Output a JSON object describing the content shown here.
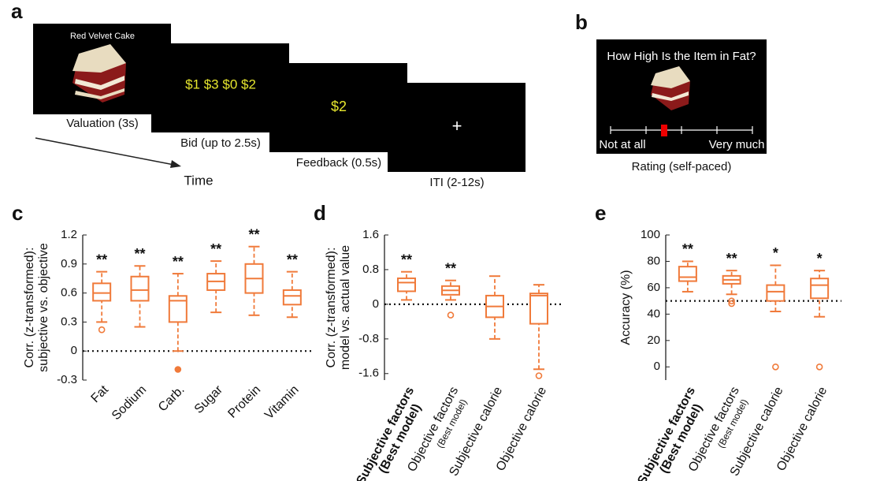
{
  "diagram": {
    "panel_a": "a",
    "panel_b": "b",
    "screens": [
      {
        "text": "Red Velvet Cake",
        "caption": "Valuation (3s)"
      },
      {
        "text": "$1  $3  $0  $2",
        "caption": "Bid (up to 2.5s)"
      },
      {
        "text": "$2",
        "caption": "Feedback (0.5s)"
      },
      {
        "text": "+",
        "caption": "ITI (2-12s)"
      }
    ],
    "time_label": "Time",
    "rating": {
      "question": "How High Is the Item in Fat?",
      "left": "Not at all",
      "right": "Very much",
      "caption": "Rating (self-paced)"
    }
  },
  "chart_data": [
    {
      "type": "box",
      "panel": "c",
      "ylabel": [
        "Corr. (z-transformed):",
        "subjective vs. objective"
      ],
      "categories": [
        "Fat",
        "Sodium",
        "Carb.",
        "Sugar",
        "Protein",
        "Vitamin"
      ],
      "significance": [
        "**",
        "**",
        "**",
        "**",
        "**",
        "**"
      ],
      "color": "#f07a3a",
      "hline": 0,
      "ylim": [
        -0.3,
        1.2
      ],
      "yticks": [
        -0.3,
        0,
        0.3,
        0.6,
        0.9,
        1.2
      ],
      "boxes": [
        {
          "min": 0.3,
          "q1": 0.52,
          "median": 0.6,
          "q3": 0.7,
          "max": 0.82,
          "outliers": [
            0.22
          ]
        },
        {
          "min": 0.25,
          "q1": 0.52,
          "median": 0.63,
          "q3": 0.77,
          "max": 0.88
        },
        {
          "min": 0,
          "q1": 0.3,
          "median": 0.52,
          "q3": 0.57,
          "max": 0.8,
          "outliers": [
            -0.19
          ]
        },
        {
          "min": 0.4,
          "q1": 0.63,
          "median": 0.72,
          "q3": 0.8,
          "max": 0.93
        },
        {
          "min": 0.37,
          "q1": 0.6,
          "median": 0.75,
          "q3": 0.9,
          "max": 1.08
        },
        {
          "min": 0.35,
          "q1": 0.48,
          "median": 0.57,
          "q3": 0.63,
          "max": 0.82
        }
      ]
    },
    {
      "type": "box",
      "panel": "d",
      "ylabel": [
        "Corr. (z-transformed):",
        "model vs. actual value"
      ],
      "categories": [
        "Subjective factors",
        "Objective factors",
        "Subjective calorie",
        "Objective calorie"
      ],
      "category_notes": [
        "(Best model)",
        "(Best model)",
        null,
        null
      ],
      "bold": [
        true,
        false,
        false,
        false
      ],
      "significance": [
        "**",
        "**",
        null,
        null
      ],
      "color": "#f07a3a",
      "hline": 0,
      "ylim": [
        -1.75,
        1.6
      ],
      "yticks": [
        -1.6,
        -0.8,
        0,
        0.8,
        1.6
      ],
      "boxes": [
        {
          "min": 0.1,
          "q1": 0.3,
          "median": 0.5,
          "q3": 0.6,
          "max": 0.75
        },
        {
          "min": 0.1,
          "q1": 0.22,
          "median": 0.32,
          "q3": 0.42,
          "max": 0.55,
          "outliers": [
            -0.25
          ]
        },
        {
          "min": -0.8,
          "q1": -0.3,
          "median": -0.05,
          "q3": 0.2,
          "max": 0.65
        },
        {
          "min": -1.5,
          "q1": -0.45,
          "median": 0.2,
          "q3": 0.25,
          "max": 0.45,
          "outliers": [
            -1.65
          ]
        }
      ]
    },
    {
      "type": "box",
      "panel": "e",
      "ylabel": [
        "Accuracy (%)"
      ],
      "categories": [
        "Subjective factors",
        "Objective factors",
        "Subjective calorie",
        "Objective calorie"
      ],
      "category_notes": [
        "(Best model)",
        "(Best model)",
        null,
        null
      ],
      "bold": [
        true,
        false,
        false,
        false
      ],
      "significance": [
        "**",
        "**",
        "*",
        "*"
      ],
      "color": "#f07a3a",
      "hline": 50,
      "ylim": [
        -10,
        100
      ],
      "yticks": [
        0,
        20,
        40,
        60,
        80,
        100
      ],
      "boxes": [
        {
          "min": 57,
          "q1": 65,
          "median": 68,
          "q3": 76,
          "max": 80
        },
        {
          "min": 55,
          "q1": 63,
          "median": 66,
          "q3": 69,
          "max": 73,
          "outliers": [
            50,
            48
          ]
        },
        {
          "min": 42,
          "q1": 50,
          "median": 57,
          "q3": 62,
          "max": 77,
          "outliers": [
            0
          ]
        },
        {
          "min": 38,
          "q1": 52,
          "median": 62,
          "q3": 67,
          "max": 73,
          "outliers": [
            0
          ]
        }
      ]
    }
  ]
}
